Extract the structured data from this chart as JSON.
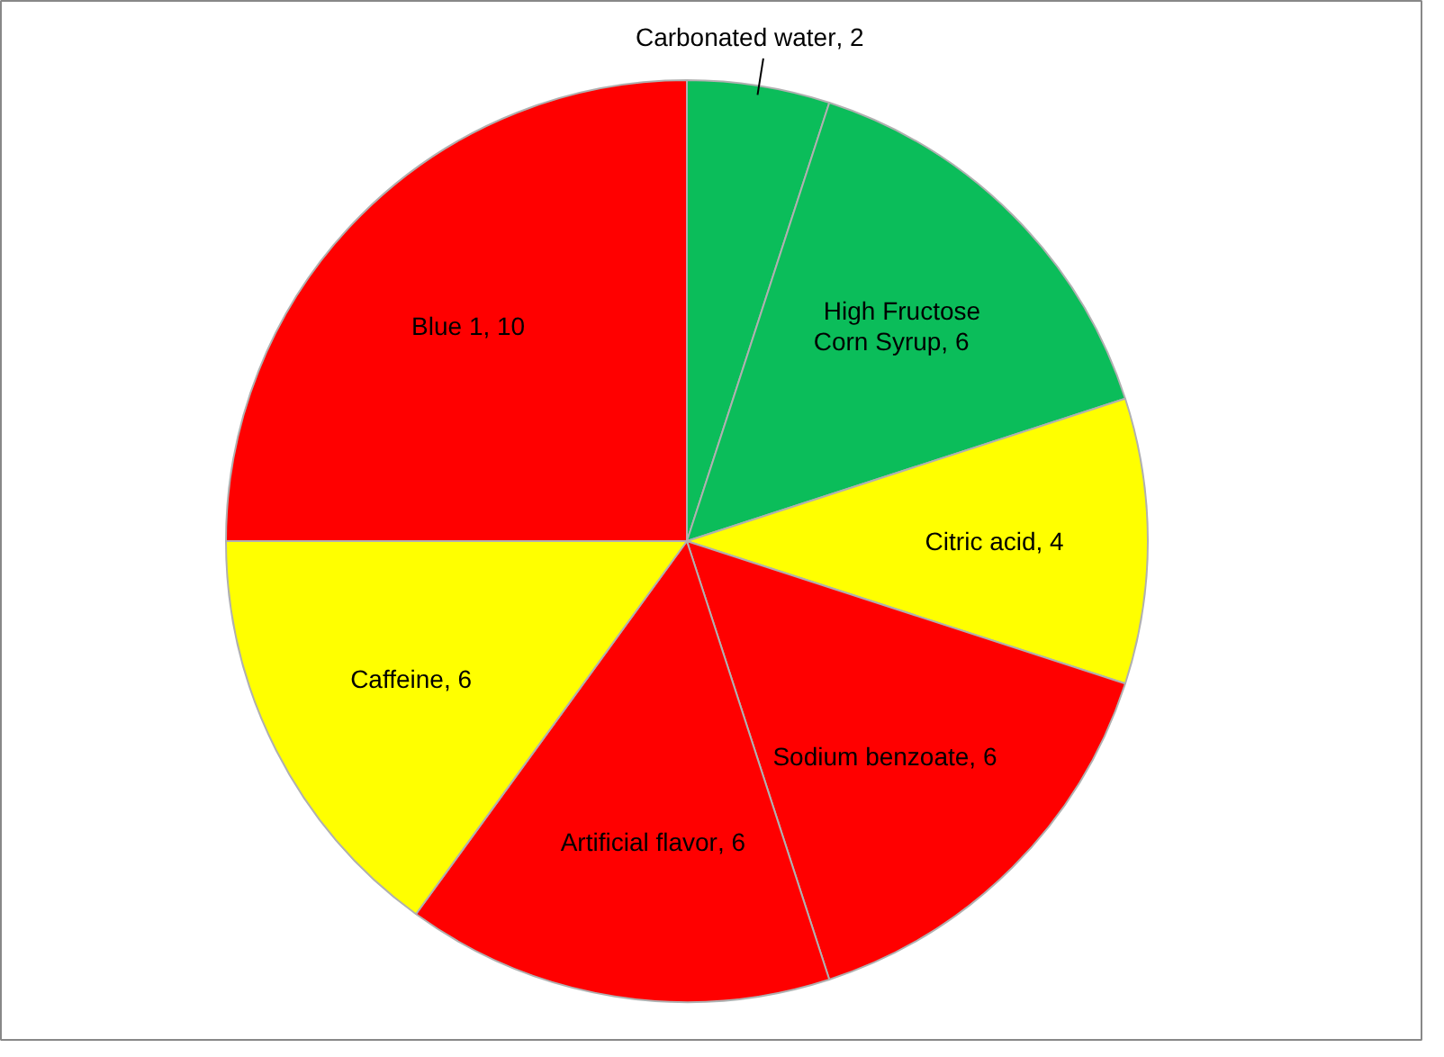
{
  "chart_data": {
    "type": "pie",
    "categories": [
      "Carbonated water",
      "High Fructose Corn Syrup",
      "Citric acid",
      "Sodium benzoate",
      "Artificial flavor",
      "Caffeine",
      "Blue 1"
    ],
    "values": [
      2,
      6,
      4,
      6,
      6,
      6,
      10
    ],
    "colors": [
      "#0bbd5a",
      "#0bbd5a",
      "#ffff00",
      "#ff0000",
      "#ff0000",
      "#ffff00",
      "#ff0000"
    ],
    "value_labels": [
      ", 2",
      ", 6",
      ", 4",
      ", 6",
      ", 6",
      ", 6",
      ", 10"
    ]
  }
}
